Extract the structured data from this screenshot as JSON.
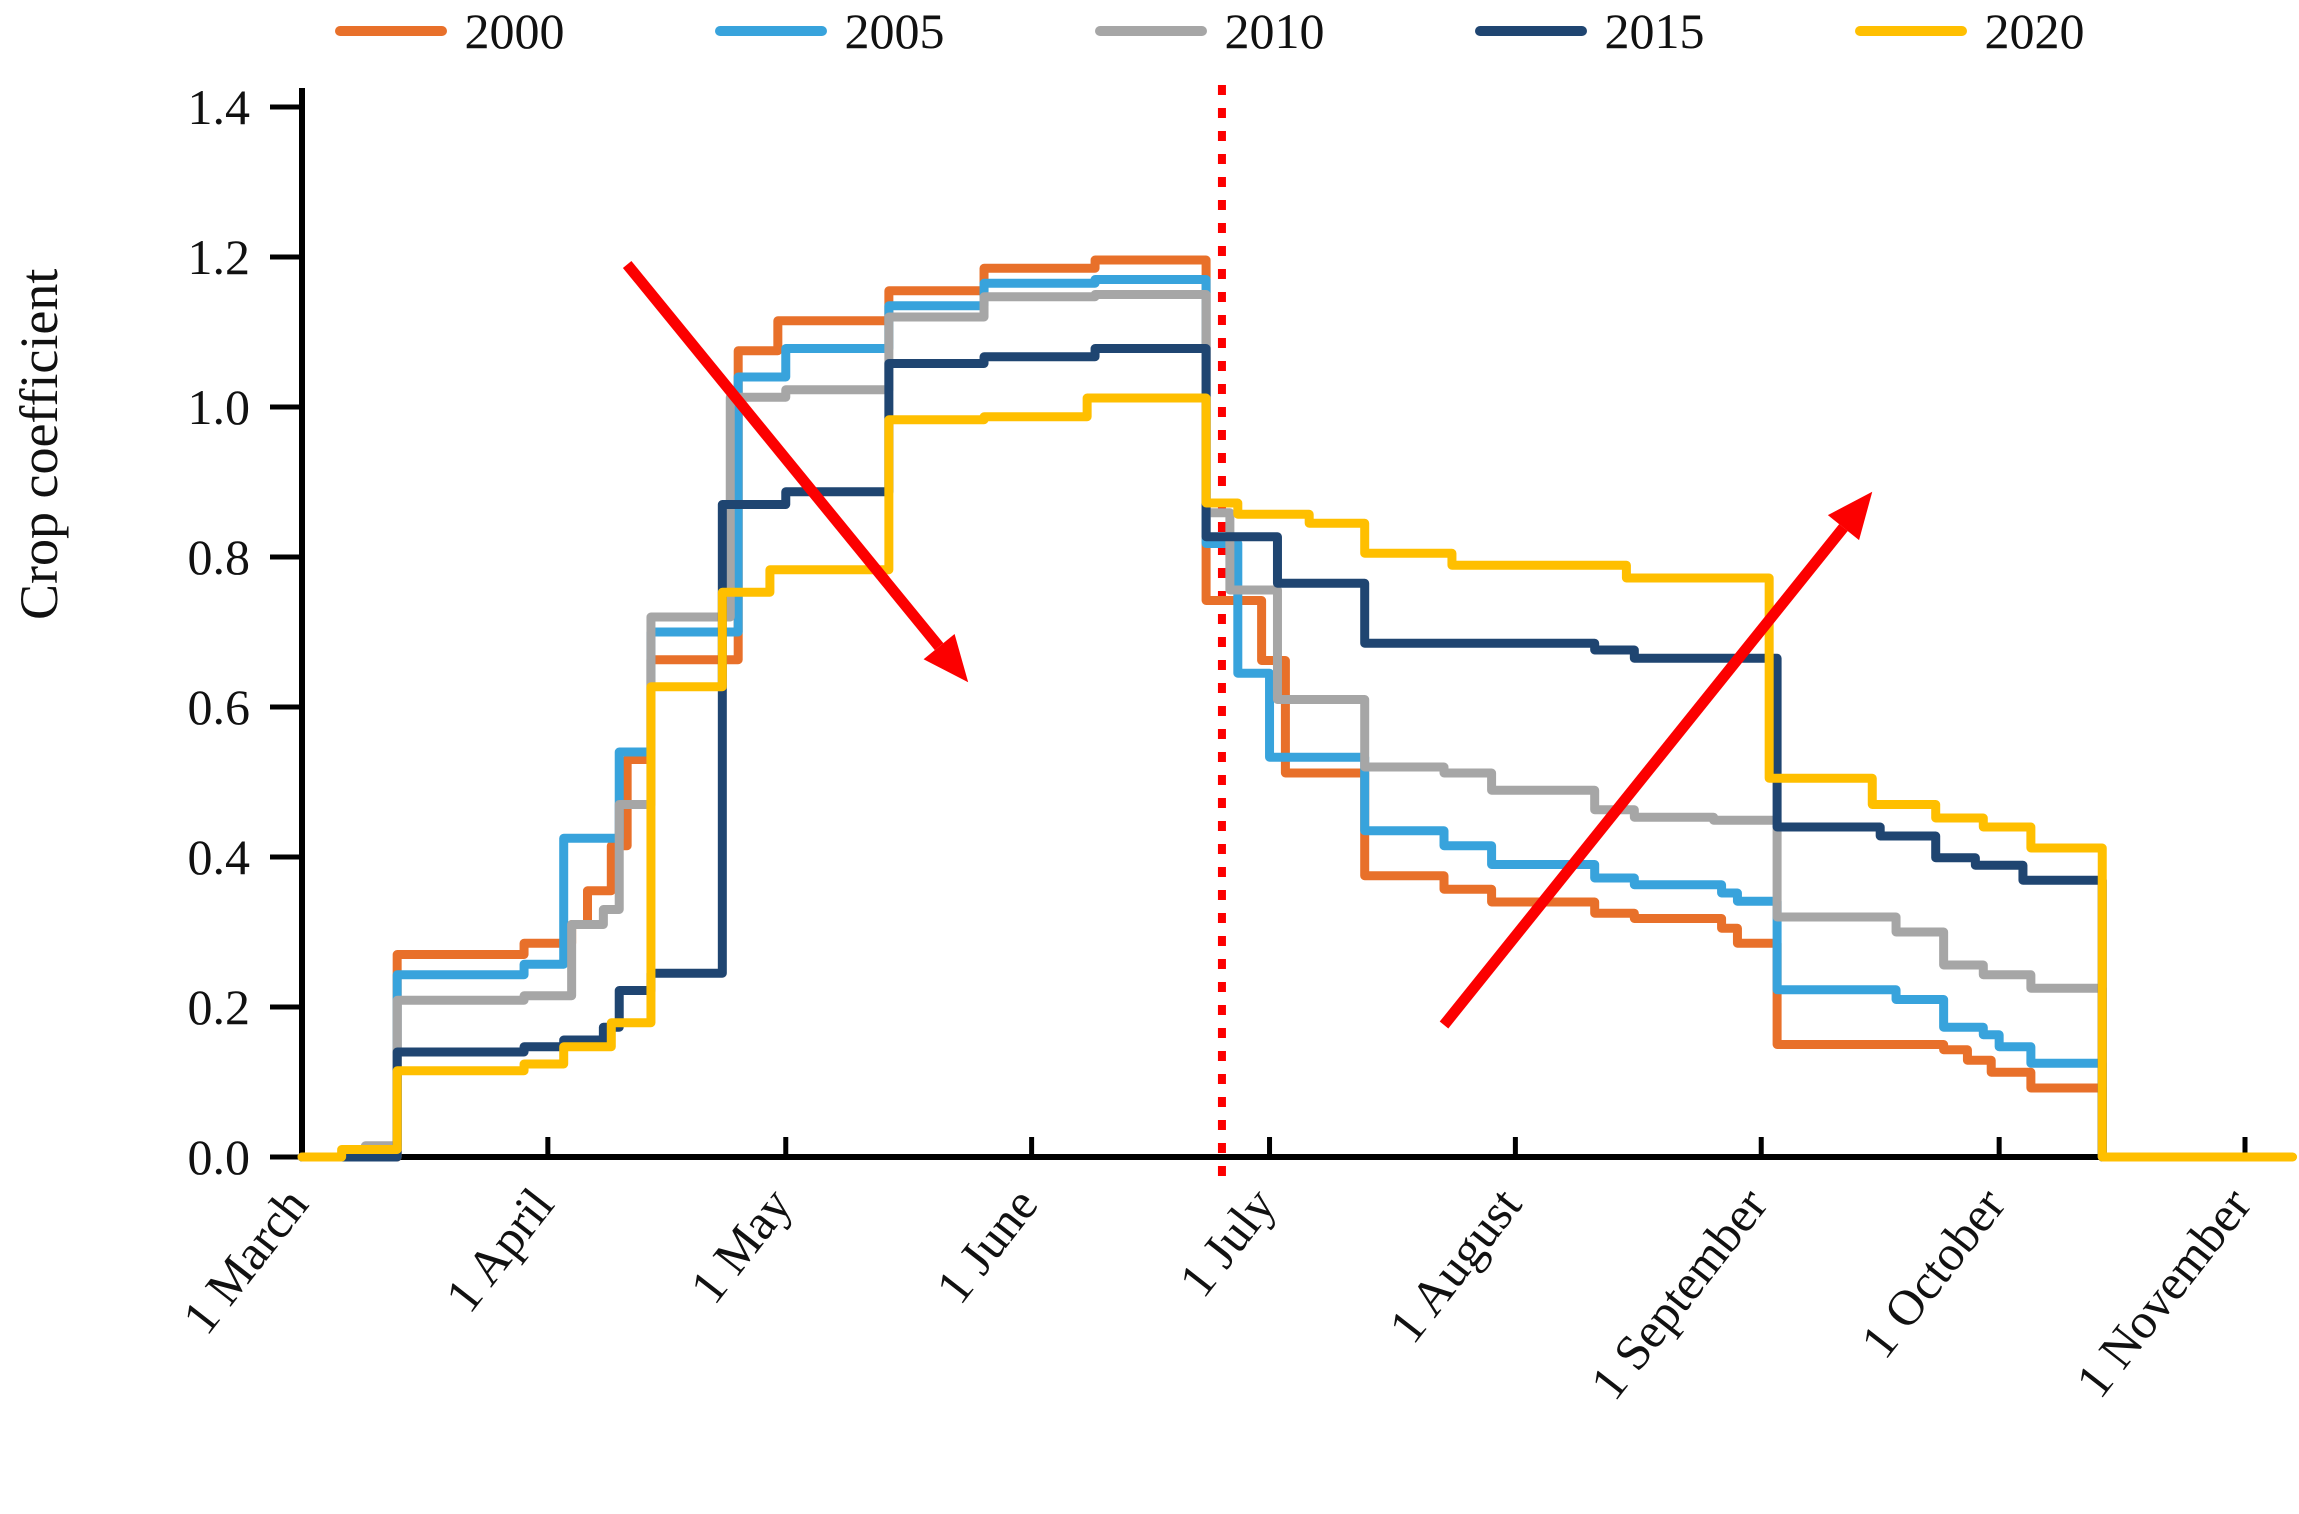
{
  "y_axis": {
    "title": "Crop coefficient",
    "min": 0.0,
    "max": 1.4,
    "tick_step": 0.2,
    "ticks": [
      0.0,
      0.2,
      0.4,
      0.6,
      0.8,
      1.0,
      1.2,
      1.4
    ]
  },
  "x_axis": {
    "tick_labels": [
      "1 March",
      "1 April",
      "1 May",
      "1 June",
      "1 July",
      "1 August",
      "1 September",
      "1 October",
      "1 November"
    ],
    "tick_days": [
      0,
      31,
      61,
      92,
      122,
      153,
      184,
      214,
      245
    ]
  },
  "legend": [
    {
      "label": "2000",
      "color": "#E8702A"
    },
    {
      "label": "2005",
      "color": "#38A3DC"
    },
    {
      "label": "2010",
      "color": "#A6A6A6"
    },
    {
      "label": "2015",
      "color": "#1F4571"
    },
    {
      "label": "2020",
      "color": "#FFBF00"
    }
  ],
  "chart_data": {
    "type": "line",
    "step": true,
    "title": "",
    "xlabel": "",
    "ylabel": "Crop coefficient",
    "ylim": [
      0.0,
      1.4
    ],
    "grid": false,
    "legend_position": "top",
    "x_unit": "days after 1 March",
    "series": [
      {
        "name": "2000",
        "color": "#E8702A",
        "points": [
          [
            0,
            0
          ],
          [
            12,
            0.27
          ],
          [
            28,
            0.285
          ],
          [
            34,
            0.31
          ],
          [
            36,
            0.355
          ],
          [
            39,
            0.415
          ],
          [
            41,
            0.53
          ],
          [
            44,
            0.663
          ],
          [
            55,
            1.075
          ],
          [
            60,
            1.115
          ],
          [
            74,
            1.155
          ],
          [
            86,
            1.185
          ],
          [
            100,
            1.196
          ],
          [
            114,
            0.742
          ],
          [
            121,
            0.662
          ],
          [
            124,
            0.512
          ],
          [
            134,
            0.375
          ],
          [
            144,
            0.357
          ],
          [
            150,
            0.34
          ],
          [
            163,
            0.325
          ],
          [
            168,
            0.318
          ],
          [
            179,
            0.305
          ],
          [
            181,
            0.285
          ],
          [
            186,
            0.15
          ],
          [
            207,
            0.143
          ],
          [
            210,
            0.129
          ],
          [
            213,
            0.113
          ],
          [
            218,
            0.092
          ],
          [
            227,
            0
          ]
        ]
      },
      {
        "name": "2005",
        "color": "#38A3DC",
        "points": [
          [
            0,
            0
          ],
          [
            9,
            0.01
          ],
          [
            12,
            0.243
          ],
          [
            28,
            0.257
          ],
          [
            33,
            0.425
          ],
          [
            40,
            0.54
          ],
          [
            44,
            0.7
          ],
          [
            55,
            1.04
          ],
          [
            61,
            1.078
          ],
          [
            74,
            1.135
          ],
          [
            86,
            1.165
          ],
          [
            100,
            1.17
          ],
          [
            114,
            0.818
          ],
          [
            118,
            0.645
          ],
          [
            122,
            0.533
          ],
          [
            134,
            0.435
          ],
          [
            144,
            0.415
          ],
          [
            150,
            0.39
          ],
          [
            163,
            0.372
          ],
          [
            168,
            0.363
          ],
          [
            179,
            0.352
          ],
          [
            181,
            0.341
          ],
          [
            186,
            0.223
          ],
          [
            201,
            0.21
          ],
          [
            207,
            0.173
          ],
          [
            212,
            0.163
          ],
          [
            214,
            0.147
          ],
          [
            218,
            0.125
          ],
          [
            227,
            0
          ]
        ]
      },
      {
        "name": "2010",
        "color": "#A6A6A6",
        "points": [
          [
            0,
            0
          ],
          [
            8,
            0.015
          ],
          [
            12,
            0.209
          ],
          [
            28,
            0.215
          ],
          [
            34,
            0.31
          ],
          [
            38,
            0.33
          ],
          [
            40,
            0.47
          ],
          [
            44,
            0.72
          ],
          [
            54,
            1.013
          ],
          [
            61,
            1.023
          ],
          [
            74,
            1.12
          ],
          [
            86,
            1.147
          ],
          [
            100,
            1.15
          ],
          [
            114,
            0.859
          ],
          [
            117,
            0.756
          ],
          [
            123,
            0.61
          ],
          [
            134,
            0.52
          ],
          [
            144,
            0.512
          ],
          [
            150,
            0.489
          ],
          [
            163,
            0.463
          ],
          [
            168,
            0.453
          ],
          [
            178,
            0.449
          ],
          [
            186,
            0.32
          ],
          [
            201,
            0.3
          ],
          [
            207,
            0.256
          ],
          [
            212,
            0.243
          ],
          [
            218,
            0.225
          ],
          [
            227,
            0
          ]
        ]
      },
      {
        "name": "2015",
        "color": "#1F4571",
        "points": [
          [
            0,
            0
          ],
          [
            12,
            0.14
          ],
          [
            28,
            0.147
          ],
          [
            33,
            0.156
          ],
          [
            38,
            0.173
          ],
          [
            40,
            0.222
          ],
          [
            44,
            0.245
          ],
          [
            53,
            0.87
          ],
          [
            61,
            0.887
          ],
          [
            74,
            1.058
          ],
          [
            86,
            1.067
          ],
          [
            100,
            1.078
          ],
          [
            114,
            0.827
          ],
          [
            123,
            0.765
          ],
          [
            134,
            0.685
          ],
          [
            163,
            0.676
          ],
          [
            168,
            0.665
          ],
          [
            186,
            0.44
          ],
          [
            199,
            0.428
          ],
          [
            206,
            0.399
          ],
          [
            211,
            0.389
          ],
          [
            217,
            0.369
          ],
          [
            227,
            0
          ]
        ]
      },
      {
        "name": "2020",
        "color": "#FFBF00",
        "points": [
          [
            0,
            0
          ],
          [
            5,
            0.01
          ],
          [
            12,
            0.115
          ],
          [
            28,
            0.124
          ],
          [
            33,
            0.147
          ],
          [
            39,
            0.179
          ],
          [
            44,
            0.627
          ],
          [
            53,
            0.753
          ],
          [
            59,
            0.783
          ],
          [
            74,
            0.983
          ],
          [
            86,
            0.987
          ],
          [
            99,
            1.012
          ],
          [
            114,
            0.872
          ],
          [
            118,
            0.857
          ],
          [
            127,
            0.845
          ],
          [
            134,
            0.805
          ],
          [
            145,
            0.789
          ],
          [
            167,
            0.772
          ],
          [
            185,
            0.505
          ],
          [
            198,
            0.47
          ],
          [
            206,
            0.452
          ],
          [
            212,
            0.44
          ],
          [
            218,
            0.412
          ],
          [
            227,
            0
          ],
          [
            251,
            0
          ]
        ]
      }
    ],
    "annotations": {
      "vline": {
        "day": 116,
        "color": "#FC0000",
        "style": "dotted",
        "label": ""
      },
      "arrows": [
        {
          "direction": "down-right",
          "from": {
            "day": 41,
            "value": 1.19
          },
          "to": {
            "day": 84,
            "value": 0.633
          },
          "color": "#FC0000"
        },
        {
          "direction": "up-right",
          "from": {
            "day": 144,
            "value": 0.176
          },
          "to": {
            "day": 198,
            "value": 0.887
          },
          "color": "#FC0000"
        }
      ]
    }
  }
}
